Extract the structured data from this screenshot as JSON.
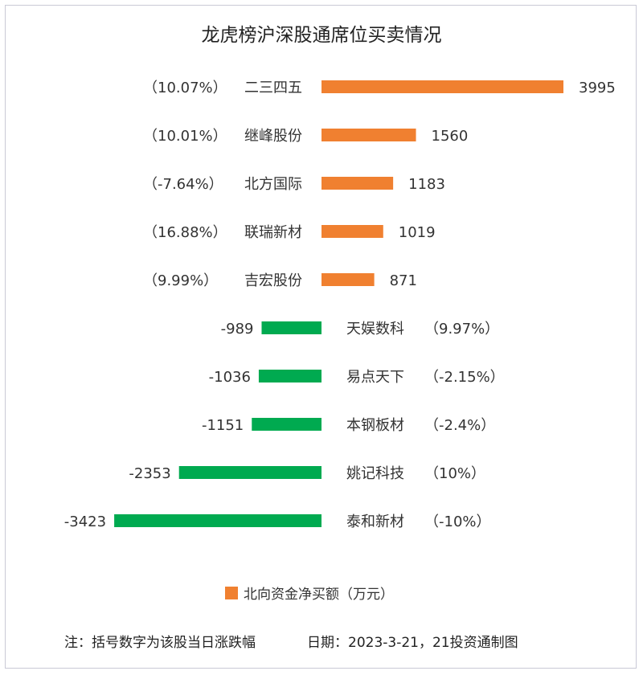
{
  "chart_data": {
    "type": "bar",
    "orientation": "horizontal",
    "title": "龙虎榜沪深股通席位买卖情况",
    "legend": {
      "label": "北向资金净买额（万元）",
      "position": "bottom",
      "color": "#f08030"
    },
    "colors": {
      "positive": "#f08030",
      "negative": "#00aa50"
    },
    "items": [
      {
        "name": "二三四五",
        "change": "（10.07%）",
        "value": 3995
      },
      {
        "name": "继峰股份",
        "change": "（10.01%）",
        "value": 1560
      },
      {
        "name": "北方国际",
        "change": "（-7.64%）",
        "value": 1183
      },
      {
        "name": "联瑞新材",
        "change": "（16.88%）",
        "value": 1019
      },
      {
        "name": "吉宏股份",
        "change": "（9.99%）",
        "value": 871
      },
      {
        "name": "天娱数科",
        "change": "（9.97%）",
        "value": -989
      },
      {
        "name": "易点天下",
        "change": "（-2.15%）",
        "value": -1036
      },
      {
        "name": "本钢板材",
        "change": "（-2.4%）",
        "value": -1151
      },
      {
        "name": "姚记科技",
        "change": "（10%）",
        "value": -2353
      },
      {
        "name": "泰和新材",
        "change": "（-10%）",
        "value": -3423
      }
    ]
  },
  "footer": {
    "note": "注：括号数字为该股当日涨跌幅",
    "date": "日期：2023-3-21，21投资通制图"
  }
}
